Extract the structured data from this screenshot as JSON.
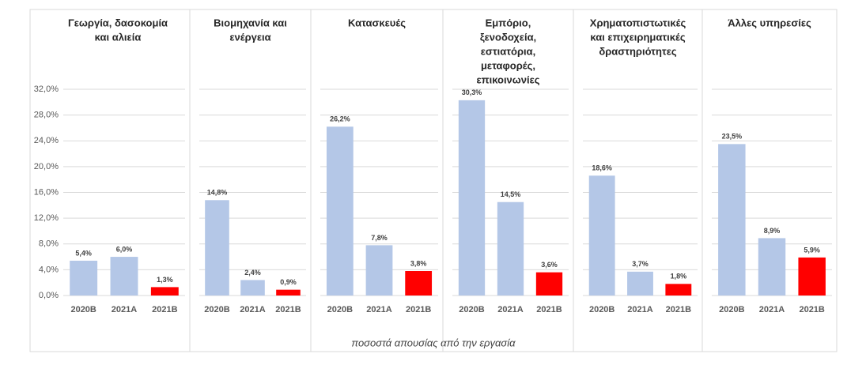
{
  "chart_data": [
    {
      "type": "bar",
      "title": [
        "Γεωργία, δασοκομία",
        "και αλιεία"
      ],
      "categories": [
        "2020B",
        "2021A",
        "2021B"
      ],
      "values": [
        5.4,
        6.0,
        1.3
      ],
      "value_labels": [
        "5,4%",
        "6,0%",
        "1,3%"
      ],
      "colors": [
        "#b4c7e7",
        "#b4c7e7",
        "#ff0000"
      ],
      "ylim": [
        0,
        32
      ],
      "yticks": [
        {
          "value": 0,
          "label": "0,0%"
        },
        {
          "value": 4,
          "label": "4,0%"
        },
        {
          "value": 8,
          "label": "8,0%"
        },
        {
          "value": 12,
          "label": "12,0%"
        },
        {
          "value": 16,
          "label": "16,0%"
        },
        {
          "value": 20,
          "label": "20,0%"
        },
        {
          "value": 24,
          "label": "24,0%"
        },
        {
          "value": 28,
          "label": "28,0%"
        },
        {
          "value": 32,
          "label": "32,0%"
        }
      ],
      "grid": true
    },
    {
      "type": "bar",
      "title": [
        "Βιομηχανία και",
        "ενέργεια"
      ],
      "categories": [
        "2020B",
        "2021A",
        "2021B"
      ],
      "values": [
        14.8,
        2.4,
        0.9
      ],
      "value_labels": [
        "14,8%",
        "2,4%",
        "0,9%"
      ],
      "colors": [
        "#b4c7e7",
        "#b4c7e7",
        "#ff0000"
      ],
      "grid": true
    },
    {
      "type": "bar",
      "title": [
        "Κατασκευές"
      ],
      "categories": [
        "2020B",
        "2021A",
        "2021B"
      ],
      "values": [
        26.2,
        7.8,
        3.8
      ],
      "value_labels": [
        "26,2%",
        "7,8%",
        "3,8%"
      ],
      "colors": [
        "#b4c7e7",
        "#b4c7e7",
        "#ff0000"
      ],
      "grid": true
    },
    {
      "type": "bar",
      "title": [
        "Εμπόριο,",
        "ξενοδοχεία,",
        "εστιατόρια,",
        "μεταφορές,",
        "επικοινωνίες"
      ],
      "categories": [
        "2020B",
        "2021A",
        "2021B"
      ],
      "values": [
        30.3,
        14.5,
        3.6
      ],
      "value_labels": [
        "30,3%",
        "14,5%",
        "3,6%"
      ],
      "colors": [
        "#b4c7e7",
        "#b4c7e7",
        "#ff0000"
      ],
      "grid": true
    },
    {
      "type": "bar",
      "title": [
        "Χρηματοπιστωτικές",
        "και επιχειρηματικές",
        "δραστηριότητες"
      ],
      "categories": [
        "2020B",
        "2021A",
        "2021B"
      ],
      "values": [
        18.6,
        3.7,
        1.8
      ],
      "value_labels": [
        "18,6%",
        "3,7%",
        "1,8%"
      ],
      "colors": [
        "#b4c7e7",
        "#b4c7e7",
        "#ff0000"
      ],
      "grid": true
    },
    {
      "type": "bar",
      "title": [
        "Άλλες υπηρεσίες"
      ],
      "categories": [
        "2020B",
        "2021A",
        "2021B"
      ],
      "values": [
        23.5,
        8.9,
        5.9
      ],
      "value_labels": [
        "23,5%",
        "8,9%",
        "5,9%"
      ],
      "colors": [
        "#b4c7e7",
        "#b4c7e7",
        "#ff0000"
      ],
      "grid": true
    }
  ],
  "x_axis_label": "ποσοστά απουσίας από την εργασία"
}
